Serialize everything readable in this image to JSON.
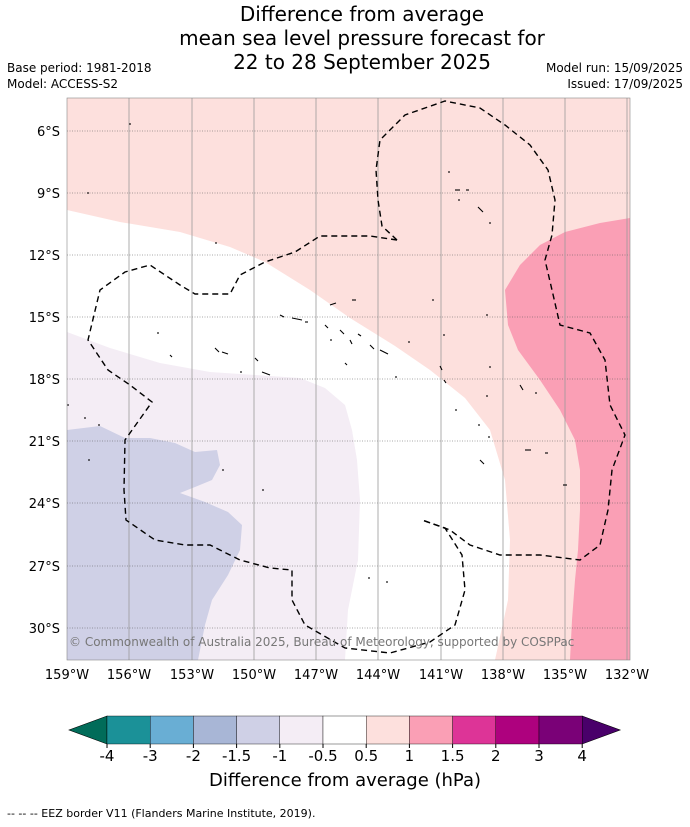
{
  "header": {
    "title_line1": "Difference from average",
    "title_line2": "mean sea level pressure forecast for",
    "title_line3": "22 to 28 September 2025",
    "base_period": "Base period: 1981-2018",
    "model": "Model: ACCESS-S2",
    "model_run": "Model run: 15/09/2025",
    "issued": "Issued: 17/09/2025"
  },
  "map": {
    "lat_labels": [
      "6°S",
      "9°S",
      "12°S",
      "15°S",
      "18°S",
      "21°S",
      "24°S",
      "27°S",
      "30°S"
    ],
    "lon_labels": [
      "159°W",
      "156°W",
      "153°W",
      "150°W",
      "147°W",
      "144°W",
      "141°W",
      "138°W",
      "135°W",
      "132°W"
    ],
    "copyright": "© Commonwealth of Australia 2025, Bureau of Meteorology, supported by COSPPac"
  },
  "colorbar": {
    "ticks": [
      "-4",
      "-3",
      "-2",
      "-1.5",
      "-1",
      "-0.5",
      "0.5",
      "1",
      "1.5",
      "2",
      "3",
      "4"
    ],
    "colors": [
      "#1b9198",
      "#69aed4",
      "#a8b6d6",
      "#cfd0e6",
      "#f4edf5",
      "#ffffff",
      "#fde0dd",
      "#fa9fb5",
      "#dd3497",
      "#ae017e",
      "#7a0177"
    ],
    "under_color": "#016c59",
    "over_color": "#49006a",
    "label": "Difference from average (hPa)"
  },
  "footer": {
    "eez_legend": "--  --  -- EEZ border V11 (Flanders Marine Institute, 2019)."
  }
}
